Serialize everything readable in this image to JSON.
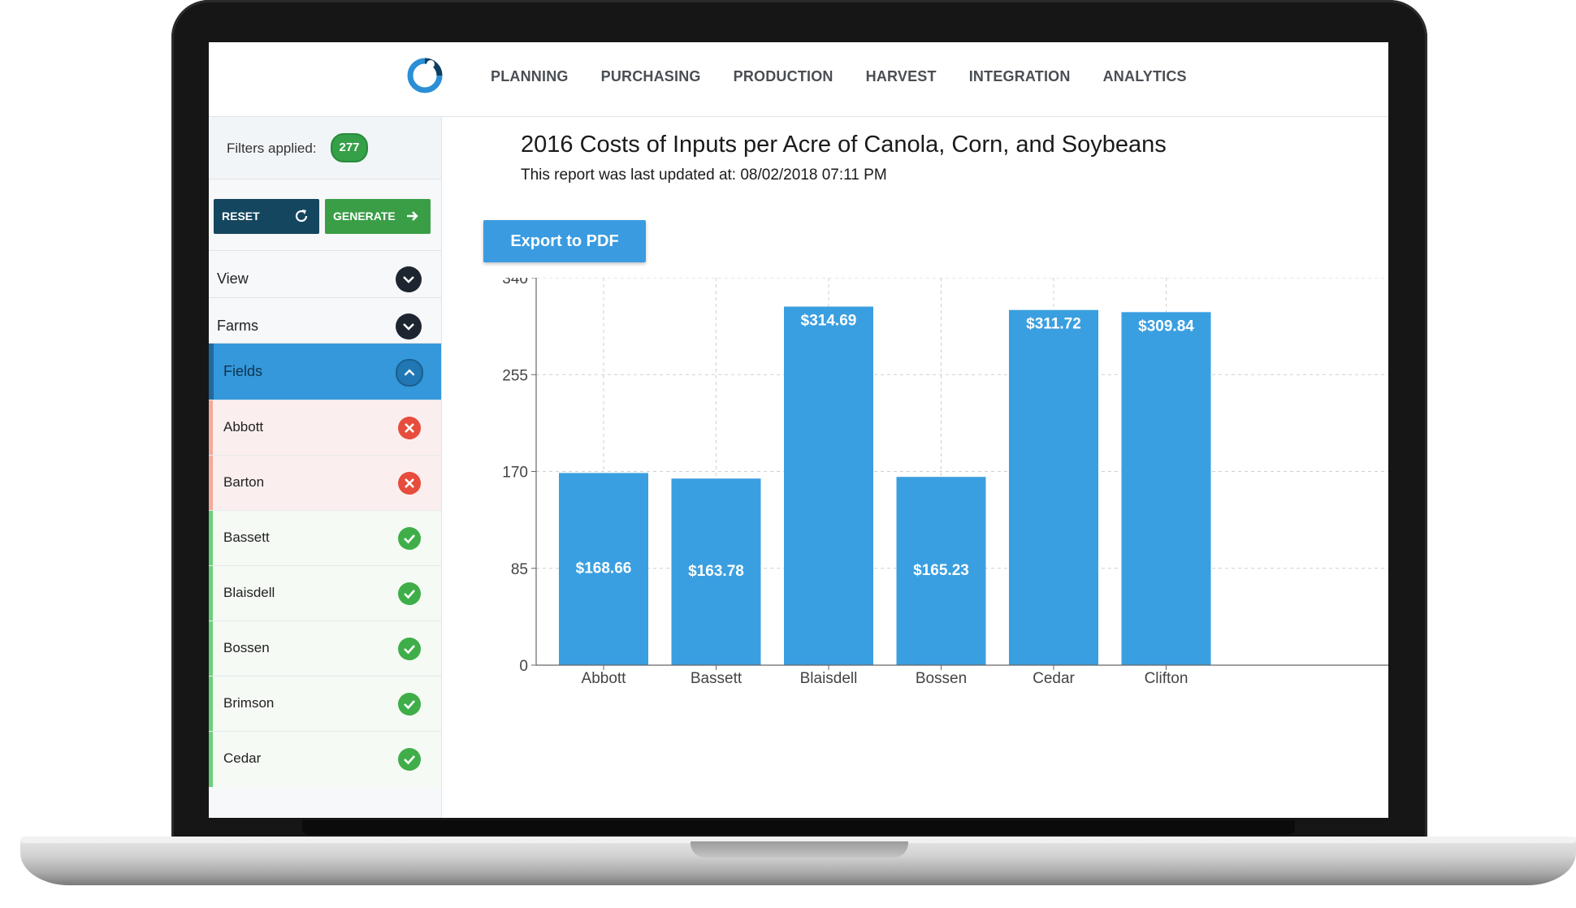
{
  "nav": {
    "items": [
      "PLANNING",
      "PURCHASING",
      "PRODUCTION",
      "HARVEST",
      "INTEGRATION",
      "ANALYTICS"
    ]
  },
  "sidebar": {
    "filters_label": "Filters applied:",
    "filters_count": "277",
    "reset_label": "RESET",
    "generate_label": "GENERATE",
    "sections": [
      {
        "label": "View"
      },
      {
        "label": "Farms"
      },
      {
        "label": "Fields"
      }
    ],
    "fields": [
      {
        "label": "Abbott",
        "status": "excluded"
      },
      {
        "label": "Barton",
        "status": "excluded"
      },
      {
        "label": "Bassett",
        "status": "included"
      },
      {
        "label": "Blaisdell",
        "status": "included"
      },
      {
        "label": "Bossen",
        "status": "included"
      },
      {
        "label": "Brimson",
        "status": "included"
      },
      {
        "label": "Cedar",
        "status": "included"
      }
    ]
  },
  "report": {
    "title": "2016 Costs of Inputs per Acre of Canola, Corn, and Soybeans",
    "updated": "This report was last updated at: 08/02/2018 07:11 PM",
    "export_label": "Export to PDF"
  },
  "colors": {
    "bar": "#3a9fe0",
    "accent_dark": "#15465f",
    "accent_green": "#3a9e47",
    "excluded": "#e74c3c",
    "included": "#3fae49"
  },
  "chart_data": {
    "type": "bar",
    "categories": [
      "Abbott",
      "Bassett",
      "Blaisdell",
      "Bossen",
      "Cedar",
      "Clifton"
    ],
    "values": [
      168.66,
      163.78,
      314.69,
      165.23,
      311.72,
      309.84
    ],
    "data_labels": [
      "$168.66",
      "$163.78",
      "$314.69",
      "$165.23",
      "$311.72",
      "$309.84"
    ],
    "yticks": [
      0,
      85,
      170,
      255,
      340
    ],
    "ylim": [
      0,
      340
    ],
    "grid": true,
    "title": "",
    "xlabel": "",
    "ylabel": ""
  }
}
